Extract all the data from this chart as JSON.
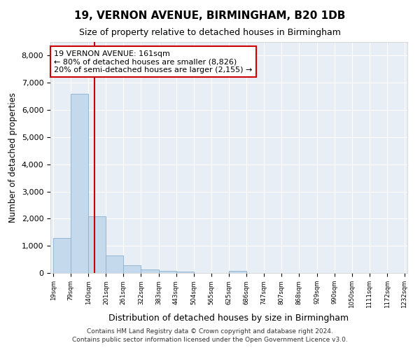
{
  "title1": "19, VERNON AVENUE, BIRMINGHAM, B20 1DB",
  "title2": "Size of property relative to detached houses in Birmingham",
  "xlabel": "Distribution of detached houses by size in Birmingham",
  "ylabel": "Number of detached properties",
  "bar_color": "#c5d9ed",
  "bar_edge_color": "#8ab0cf",
  "background_color": "#e8eef5",
  "vline_color": "#cc0000",
  "vline_x": 161,
  "annotation_title": "19 VERNON AVENUE: 161sqm",
  "annotation_line1": "← 80% of detached houses are smaller (8,826)",
  "annotation_line2": "20% of semi-detached houses are larger (2,155) →",
  "footer1": "Contains HM Land Registry data © Crown copyright and database right 2024.",
  "footer2": "Contains public sector information licensed under the Open Government Licence v3.0.",
  "bin_edges": [
    19,
    79,
    140,
    201,
    261,
    322,
    383,
    443,
    504,
    565,
    625,
    686,
    747,
    807,
    868,
    929,
    990,
    1050,
    1111,
    1172,
    1232
  ],
  "bin_heights": [
    1300,
    6600,
    2080,
    650,
    290,
    125,
    80,
    55,
    0,
    0,
    90,
    0,
    0,
    0,
    0,
    0,
    0,
    0,
    0,
    0
  ],
  "ylim": [
    0,
    8500
  ],
  "yticks": [
    0,
    1000,
    2000,
    3000,
    4000,
    5000,
    6000,
    7000,
    8000
  ]
}
